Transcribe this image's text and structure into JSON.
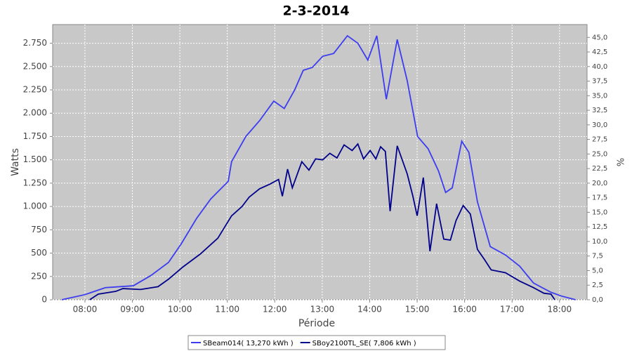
{
  "chart_data": {
    "type": "line",
    "title": "2-3-2014",
    "xlabel": "Période",
    "ylabel": "Watts",
    "y2label": "%",
    "xlim": [
      7.32,
      18.58
    ],
    "ylim": [
      0,
      2950
    ],
    "y2lim": [
      0,
      47.2
    ],
    "grid": true,
    "legend": "bottom",
    "xticks": [
      {
        "value": 8,
        "label": "08:00"
      },
      {
        "value": 9,
        "label": "09:00"
      },
      {
        "value": 10,
        "label": "10:00"
      },
      {
        "value": 11,
        "label": "11:00"
      },
      {
        "value": 12,
        "label": "12:00"
      },
      {
        "value": 13,
        "label": "13:00"
      },
      {
        "value": 14,
        "label": "14:00"
      },
      {
        "value": 15,
        "label": "15:00"
      },
      {
        "value": 16,
        "label": "16:00"
      },
      {
        "value": 17,
        "label": "17:00"
      },
      {
        "value": 18,
        "label": "18:00"
      }
    ],
    "yticks": [
      0,
      250,
      500,
      750,
      {
        "value": 1000,
        "label": "1.000"
      },
      {
        "value": 1250,
        "label": "1.250"
      },
      {
        "value": 1500,
        "label": "1.500"
      },
      {
        "value": 1750,
        "label": "1.750"
      },
      {
        "value": 2000,
        "label": "2.000"
      },
      {
        "value": 2250,
        "label": "2.250"
      },
      {
        "value": 2500,
        "label": "2.500"
      },
      {
        "value": 2750,
        "label": "2.750"
      }
    ],
    "y2ticks": [
      {
        "value": 0,
        "label": "0,0"
      },
      {
        "value": 2.5,
        "label": "2,5"
      },
      {
        "value": 5,
        "label": "5,0"
      },
      {
        "value": 7.5,
        "label": "7,5"
      },
      {
        "value": 10,
        "label": "10,0"
      },
      {
        "value": 12.5,
        "label": "12,5"
      },
      {
        "value": 15,
        "label": "15,0"
      },
      {
        "value": 17.5,
        "label": "17,5"
      },
      {
        "value": 20,
        "label": "20,0"
      },
      {
        "value": 22.5,
        "label": "22,5"
      },
      {
        "value": 25,
        "label": "25,0"
      },
      {
        "value": 27.5,
        "label": "27,5"
      },
      {
        "value": 30,
        "label": "30,0"
      },
      {
        "value": 32.5,
        "label": "32,5"
      },
      {
        "value": 35,
        "label": "35,0"
      },
      {
        "value": 37.5,
        "label": "37,5"
      },
      {
        "value": 40,
        "label": "40,0"
      },
      {
        "value": 42.5,
        "label": "42,5"
      },
      {
        "value": 45,
        "label": "45,0"
      }
    ],
    "series": [
      {
        "name": "SBeam014( 13,270 kWh )",
        "color": "#3c3cf0",
        "x": [
          7.51,
          8.0,
          8.43,
          9.02,
          9.39,
          9.76,
          10.03,
          10.35,
          10.65,
          11.02,
          11.09,
          11.39,
          11.68,
          11.98,
          12.2,
          12.42,
          12.6,
          12.79,
          13.01,
          13.24,
          13.53,
          13.75,
          13.96,
          14.15,
          14.35,
          14.58,
          14.79,
          15.01,
          15.23,
          15.45,
          15.6,
          15.74,
          15.94,
          16.09,
          16.27,
          16.54,
          16.86,
          17.16,
          17.45,
          17.82,
          18.04,
          18.34
        ],
        "values": [
          0,
          55,
          130,
          150,
          260,
          400,
          600,
          870,
          1080,
          1270,
          1480,
          1750,
          1920,
          2130,
          2050,
          2250,
          2460,
          2490,
          2610,
          2640,
          2830,
          2750,
          2570,
          2830,
          2150,
          2790,
          2350,
          1750,
          1620,
          1380,
          1150,
          1200,
          1700,
          1580,
          1050,
          570,
          480,
          360,
          180,
          80,
          40,
          0
        ]
      },
      {
        "name": "SBoy2100TL_SE( 7,806 kWh )",
        "color": "#00008b",
        "x": [
          8.1,
          8.28,
          8.65,
          8.8,
          9.17,
          9.54,
          9.76,
          10.06,
          10.43,
          10.8,
          11.09,
          11.31,
          11.46,
          11.68,
          11.9,
          12.08,
          12.16,
          12.27,
          12.37,
          12.57,
          12.72,
          12.86,
          13.01,
          13.16,
          13.31,
          13.46,
          13.63,
          13.75,
          13.87,
          14.01,
          14.13,
          14.23,
          14.33,
          14.43,
          14.58,
          14.79,
          14.91,
          15.0,
          15.13,
          15.27,
          15.41,
          15.56,
          15.7,
          15.82,
          15.97,
          16.12,
          16.27,
          16.42,
          16.56,
          16.86,
          17.16,
          17.45,
          17.67,
          17.82,
          17.9
        ],
        "values": [
          0,
          60,
          90,
          120,
          110,
          140,
          220,
          350,
          490,
          660,
          900,
          1000,
          1100,
          1190,
          1240,
          1290,
          1110,
          1400,
          1200,
          1480,
          1390,
          1510,
          1500,
          1570,
          1520,
          1660,
          1600,
          1670,
          1510,
          1600,
          1510,
          1640,
          1590,
          950,
          1650,
          1350,
          1110,
          900,
          1310,
          520,
          1030,
          650,
          640,
          850,
          1010,
          920,
          540,
          430,
          320,
          290,
          200,
          130,
          70,
          60,
          0
        ]
      }
    ]
  }
}
